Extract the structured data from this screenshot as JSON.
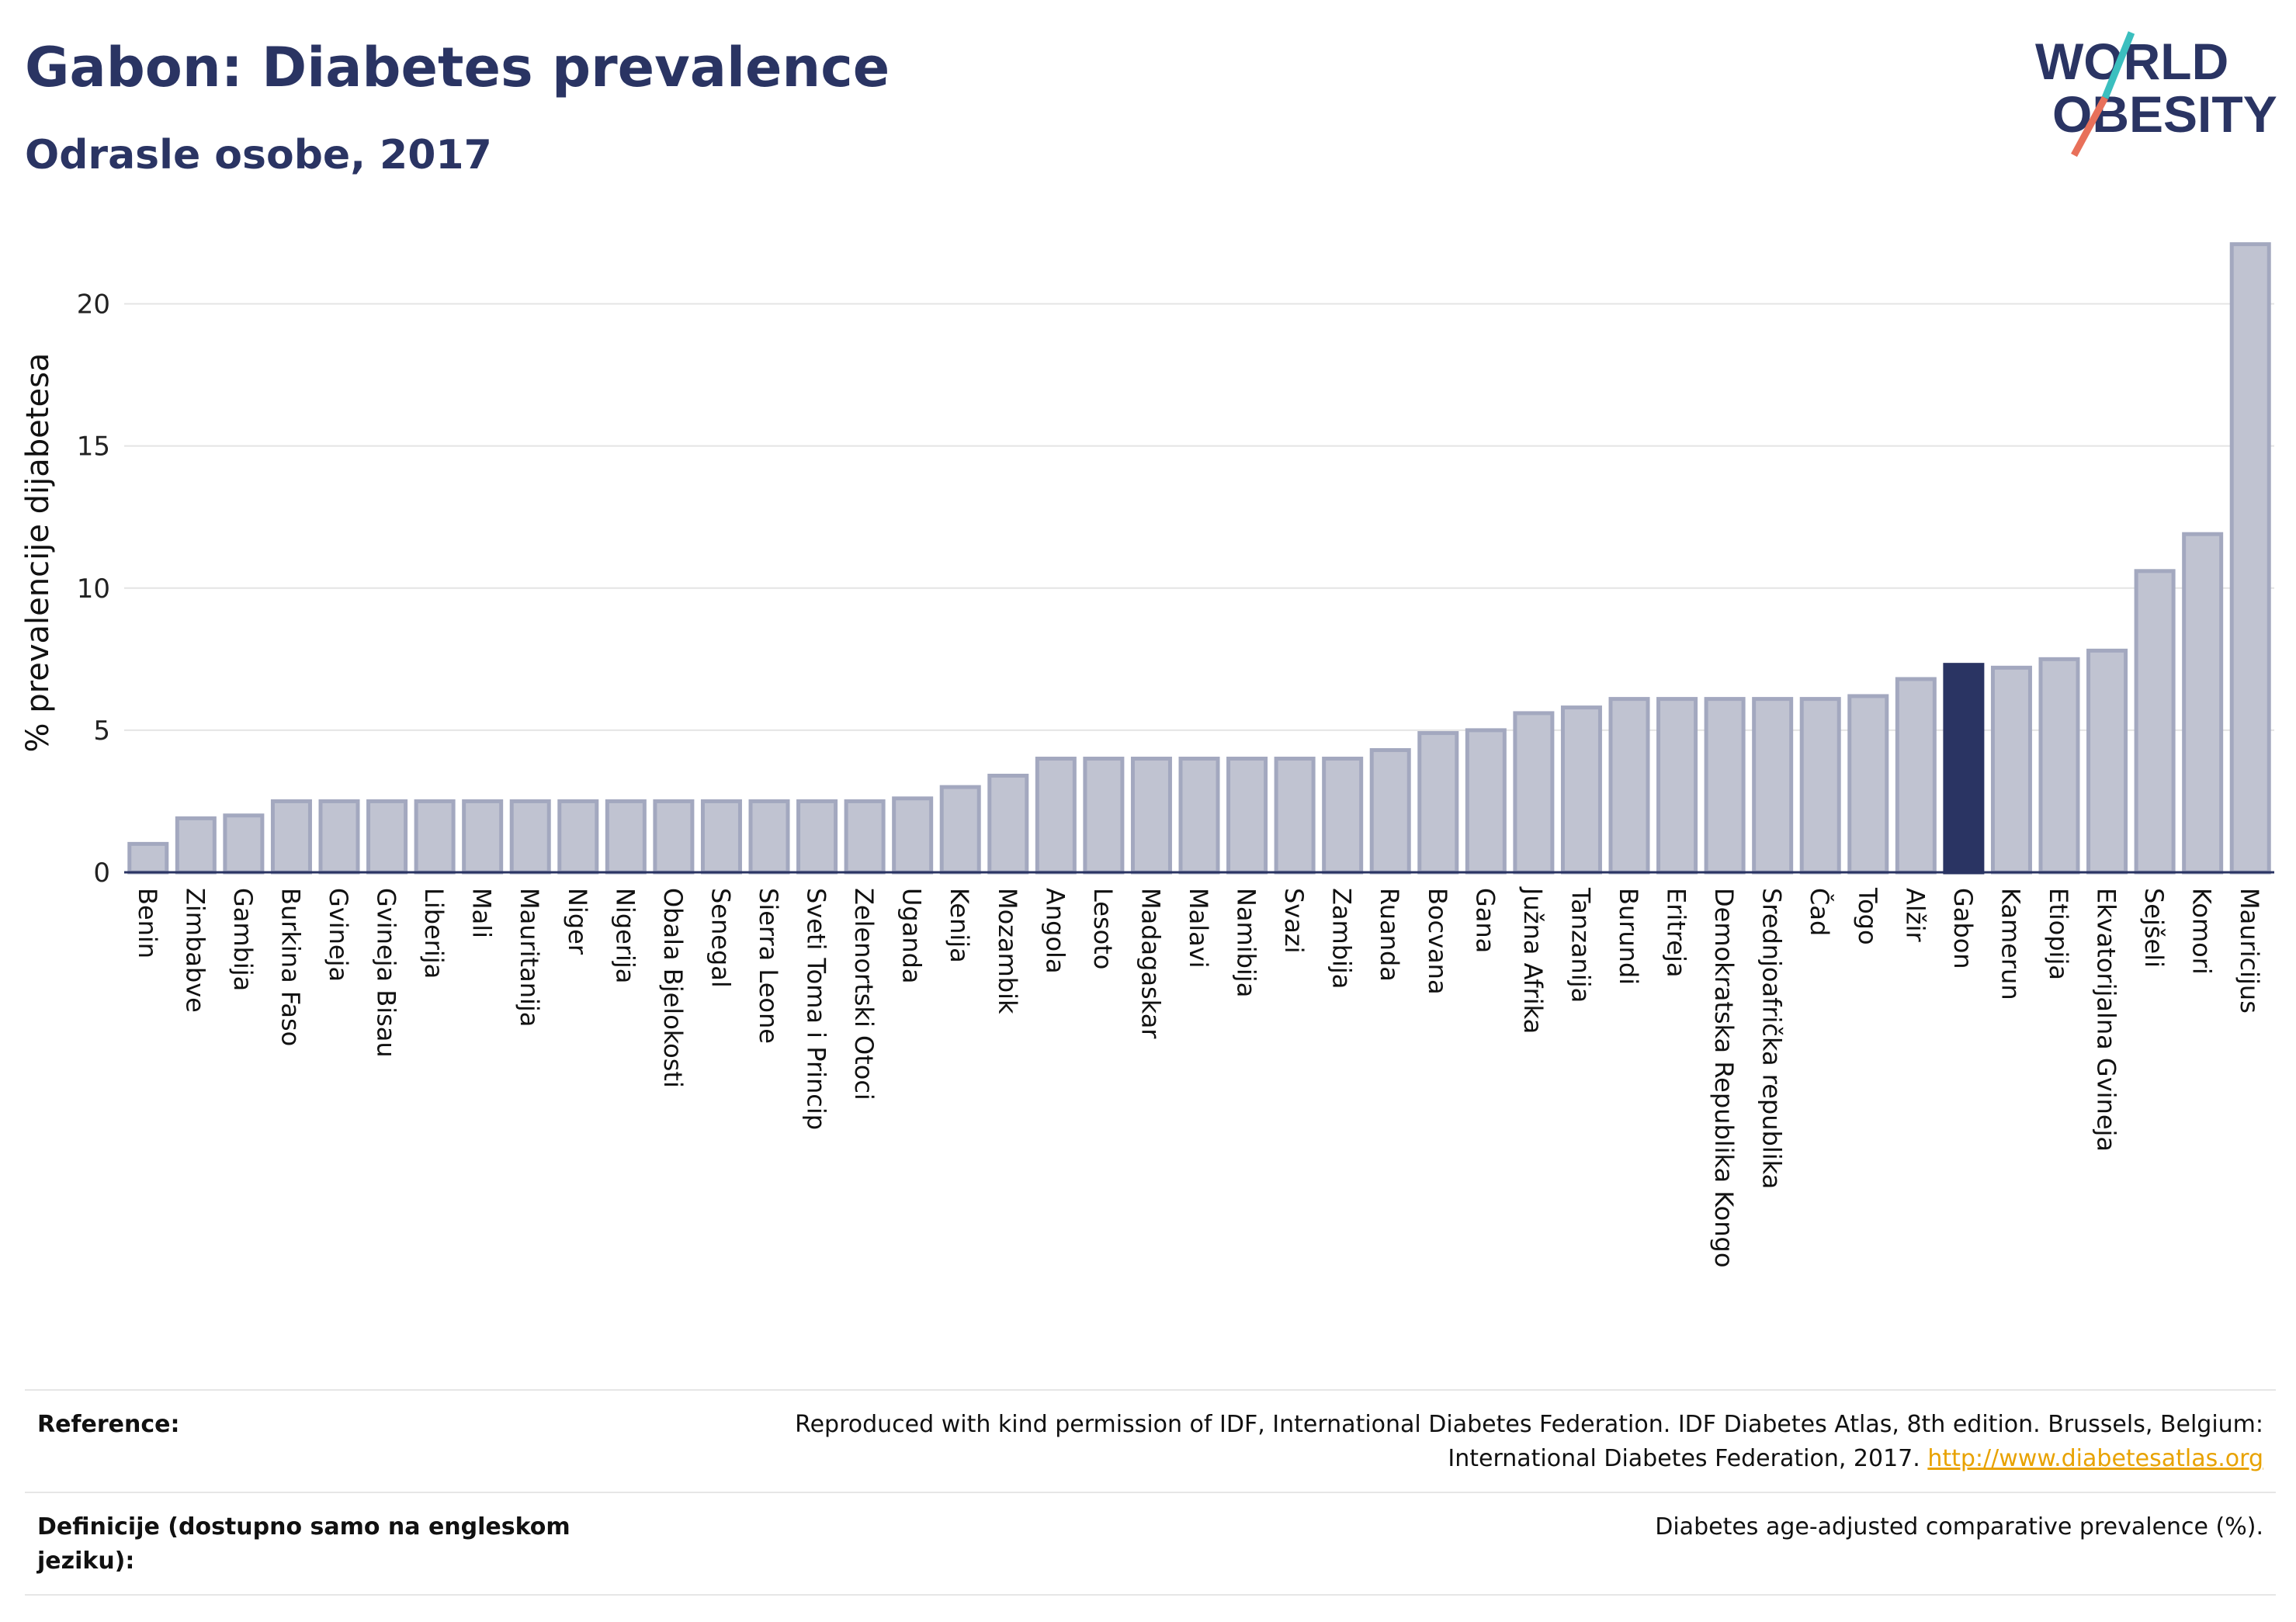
{
  "header": {
    "title": "Gabon: Diabetes prevalence",
    "subtitle": "Odrasle osobe, 2017"
  },
  "logo": {
    "line1": "WORLD",
    "line2": "OBESITY"
  },
  "colors": {
    "bar": "#c0c3d1",
    "bar_border": "#a3a8bf",
    "highlight": "#2a3463",
    "accent_teal": "#3bbfbf",
    "accent_coral": "#e8705a"
  },
  "chart_data": {
    "type": "bar",
    "ylabel": "% prevalencije dijabetesa",
    "ylim": [
      0,
      22.5
    ],
    "yticks": [
      0,
      5,
      10,
      15,
      20
    ],
    "grid": true,
    "highlight": "Gabon",
    "categories": [
      "Benin",
      "Zimbabve",
      "Gambija",
      "Burkina Faso",
      "Gvineja",
      "Gvineja Bisau",
      "Liberija",
      "Mali",
      "Mauritanija",
      "Niger",
      "Nigerija",
      "Obala Bjelokosti",
      "Senegal",
      "Sierra Leone",
      "Sveti Toma i Princip",
      "Zelenortski Otoci",
      "Uganda",
      "Kenija",
      "Mozambik",
      "Angola",
      "Lesoto",
      "Madagaskar",
      "Malavi",
      "Namibija",
      "Svazi",
      "Zambija",
      "Ruanda",
      "Bocvana",
      "Gana",
      "Južna Afrika",
      "Tanzanija",
      "Burundi",
      "Eritreja",
      "Demokratska Republika Kongo",
      "Srednjoafrička republika",
      "Čad",
      "Togo",
      "Alžir",
      "Gabon",
      "Kamerun",
      "Etiopija",
      "Ekvatorijalna Gvineja",
      "Sejšeli",
      "Komori",
      "Mauricijus"
    ],
    "values": [
      1.0,
      1.9,
      2.0,
      2.5,
      2.5,
      2.5,
      2.5,
      2.5,
      2.5,
      2.5,
      2.5,
      2.5,
      2.5,
      2.5,
      2.5,
      2.5,
      2.6,
      3.0,
      3.4,
      4.0,
      4.0,
      4.0,
      4.0,
      4.0,
      4.0,
      4.0,
      4.3,
      4.9,
      5.0,
      5.6,
      5.8,
      6.1,
      6.1,
      6.1,
      6.1,
      6.1,
      6.2,
      6.8,
      7.3,
      7.2,
      7.5,
      7.8,
      10.6,
      11.9,
      22.1
    ]
  },
  "footer": {
    "reference_label": "Reference:",
    "reference_text_1": "Reproduced with kind permission of IDF, International Diabetes Federation. IDF Diabetes Atlas, 8th edition. Brussels, Belgium:",
    "reference_text_2": "International Diabetes Federation, 2017.",
    "reference_link": "http://www.diabetesatlas.org",
    "definition_label": "Definicije (dostupno samo na engleskom jeziku):",
    "definition_text": "Diabetes age-adjusted comparative prevalence (%)."
  }
}
